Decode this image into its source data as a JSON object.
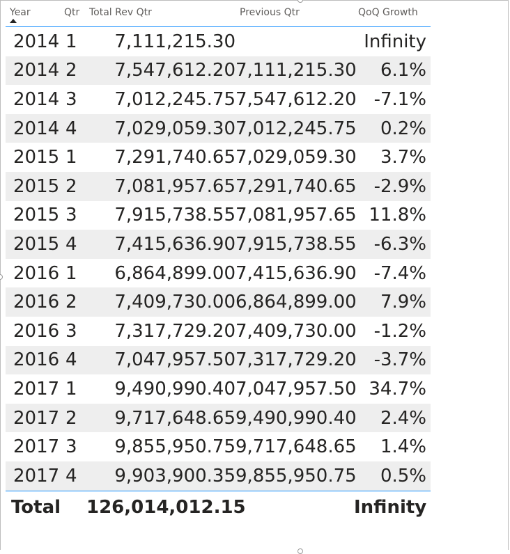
{
  "headers": {
    "year": "Year",
    "qtr": "Qtr",
    "total_rev": "Total Rev Qtr",
    "previous": "Previous Qtr",
    "qoq": "QoQ Growth"
  },
  "rows": [
    {
      "year": "2014",
      "qtr": "1",
      "rev": "7,111,215.30",
      "prev": "",
      "qoq": "Infinity"
    },
    {
      "year": "2014",
      "qtr": "2",
      "rev": "7,547,612.20",
      "prev": "7,111,215.30",
      "qoq": "6.1%"
    },
    {
      "year": "2014",
      "qtr": "3",
      "rev": "7,012,245.75",
      "prev": "7,547,612.20",
      "qoq": "-7.1%"
    },
    {
      "year": "2014",
      "qtr": "4",
      "rev": "7,029,059.30",
      "prev": "7,012,245.75",
      "qoq": "0.2%"
    },
    {
      "year": "2015",
      "qtr": "1",
      "rev": "7,291,740.65",
      "prev": "7,029,059.30",
      "qoq": "3.7%"
    },
    {
      "year": "2015",
      "qtr": "2",
      "rev": "7,081,957.65",
      "prev": "7,291,740.65",
      "qoq": "-2.9%"
    },
    {
      "year": "2015",
      "qtr": "3",
      "rev": "7,915,738.55",
      "prev": "7,081,957.65",
      "qoq": "11.8%"
    },
    {
      "year": "2015",
      "qtr": "4",
      "rev": "7,415,636.90",
      "prev": "7,915,738.55",
      "qoq": "-6.3%"
    },
    {
      "year": "2016",
      "qtr": "1",
      "rev": "6,864,899.00",
      "prev": "7,415,636.90",
      "qoq": "-7.4%"
    },
    {
      "year": "2016",
      "qtr": "2",
      "rev": "7,409,730.00",
      "prev": "6,864,899.00",
      "qoq": "7.9%"
    },
    {
      "year": "2016",
      "qtr": "3",
      "rev": "7,317,729.20",
      "prev": "7,409,730.00",
      "qoq": "-1.2%"
    },
    {
      "year": "2016",
      "qtr": "4",
      "rev": "7,047,957.50",
      "prev": "7,317,729.20",
      "qoq": "-3.7%"
    },
    {
      "year": "2017",
      "qtr": "1",
      "rev": "9,490,990.40",
      "prev": "7,047,957.50",
      "qoq": "34.7%"
    },
    {
      "year": "2017",
      "qtr": "2",
      "rev": "9,717,648.65",
      "prev": "9,490,990.40",
      "qoq": "2.4%"
    },
    {
      "year": "2017",
      "qtr": "3",
      "rev": "9,855,950.75",
      "prev": "9,717,648.65",
      "qoq": "1.4%"
    },
    {
      "year": "2017",
      "qtr": "4",
      "rev": "9,903,900.35",
      "prev": "9,855,950.75",
      "qoq": "0.5%"
    }
  ],
  "total": {
    "label": "Total",
    "rev": "126,014,012.15",
    "qoq": "Infinity"
  },
  "sort": {
    "column": "year",
    "direction": "ascending"
  },
  "colors": {
    "accent": "#118dff",
    "band": "#eeeeee",
    "header_text": "#605e5c",
    "text": "#252423"
  }
}
